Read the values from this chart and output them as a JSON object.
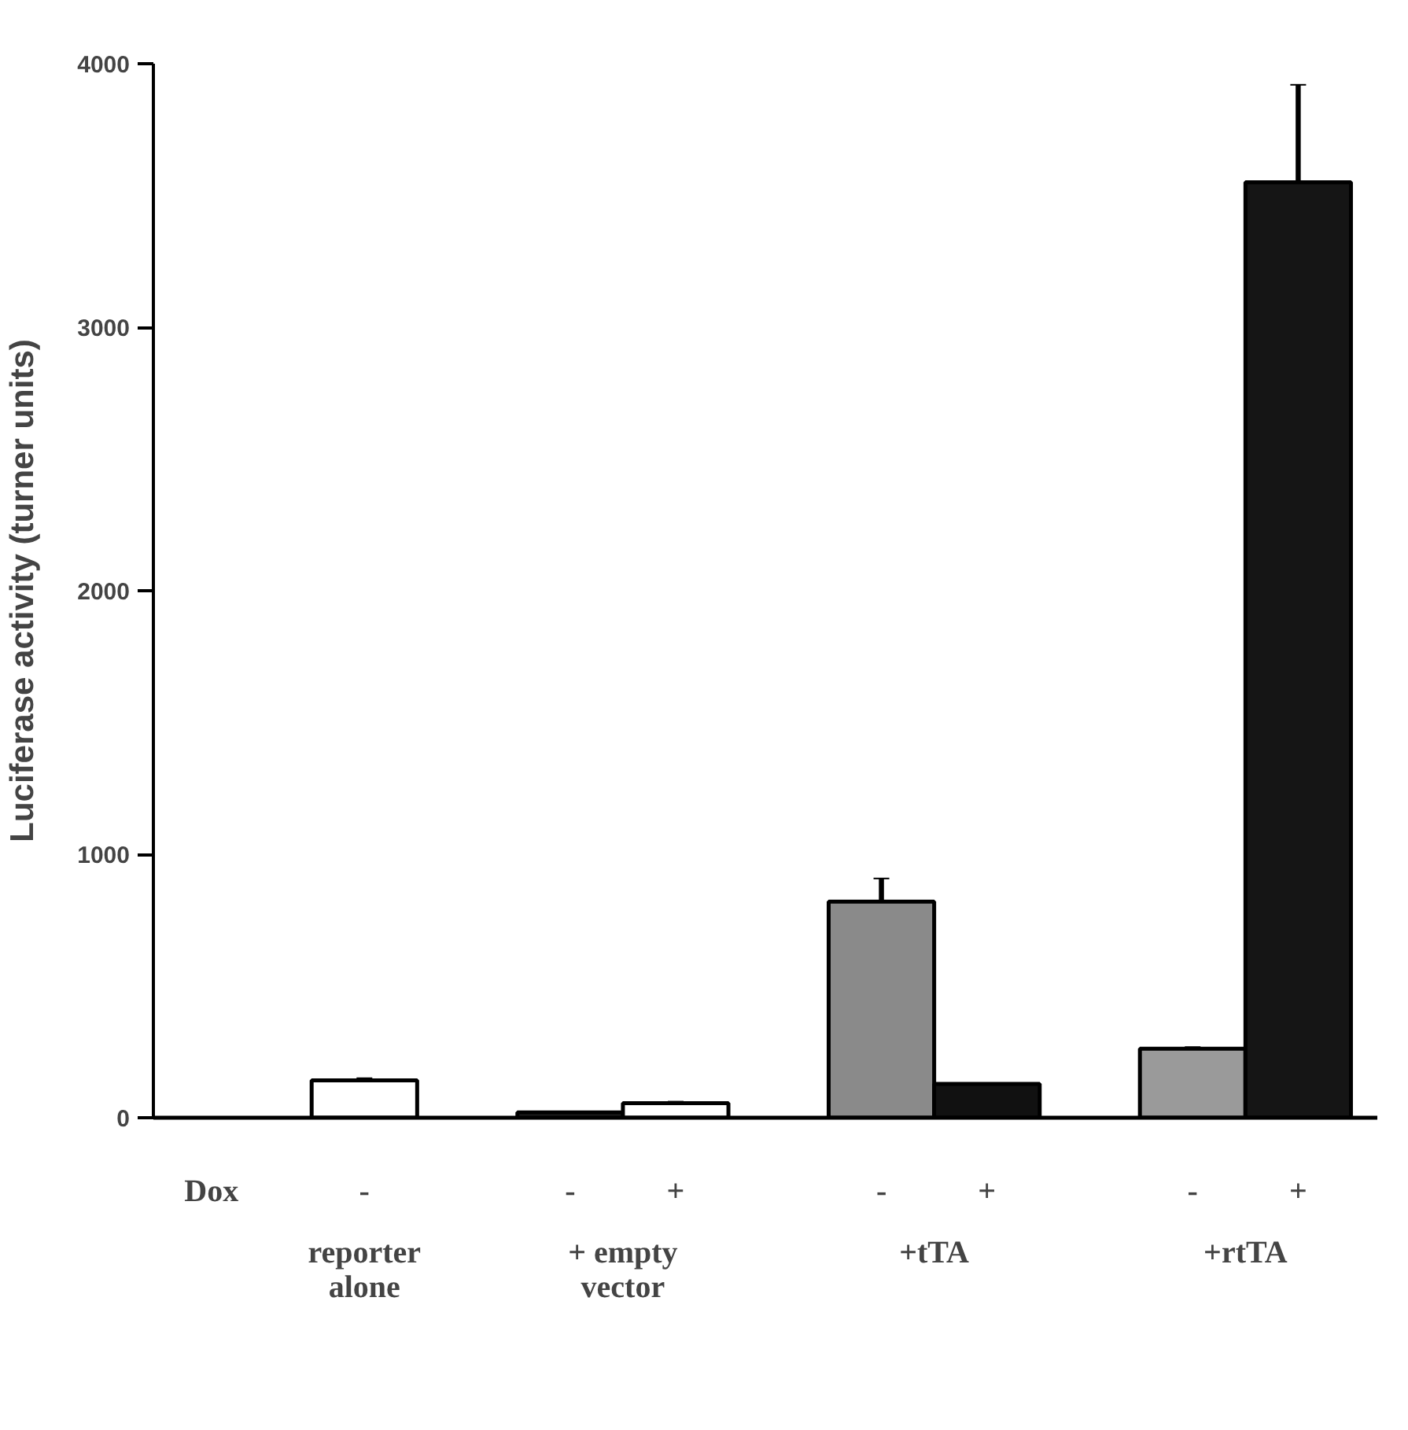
{
  "chart_data": {
    "type": "bar",
    "ylabel": "Luciferase activity (turner units)",
    "categories": [
      "-",
      "-",
      "+",
      "-",
      "+",
      "-",
      "+"
    ],
    "values": [
      142,
      20,
      55,
      820,
      128,
      262,
      3550
    ],
    "errors": [
      8,
      null,
      6,
      88,
      null,
      6,
      370
    ],
    "colors": [
      "#ffffff",
      "#222222",
      "#ffffff",
      "#8a8a8a",
      "#111111",
      "#9a9a9a",
      "#151515"
    ],
    "ylim": [
      0,
      4000
    ],
    "yticks": [
      0,
      1000,
      2000,
      3000,
      4000
    ],
    "annotations": [
      "Dox",
      "reporter\nalone",
      "+ empty\nvector",
      "+tTA",
      "+rtTA"
    ],
    "grid": false
  }
}
